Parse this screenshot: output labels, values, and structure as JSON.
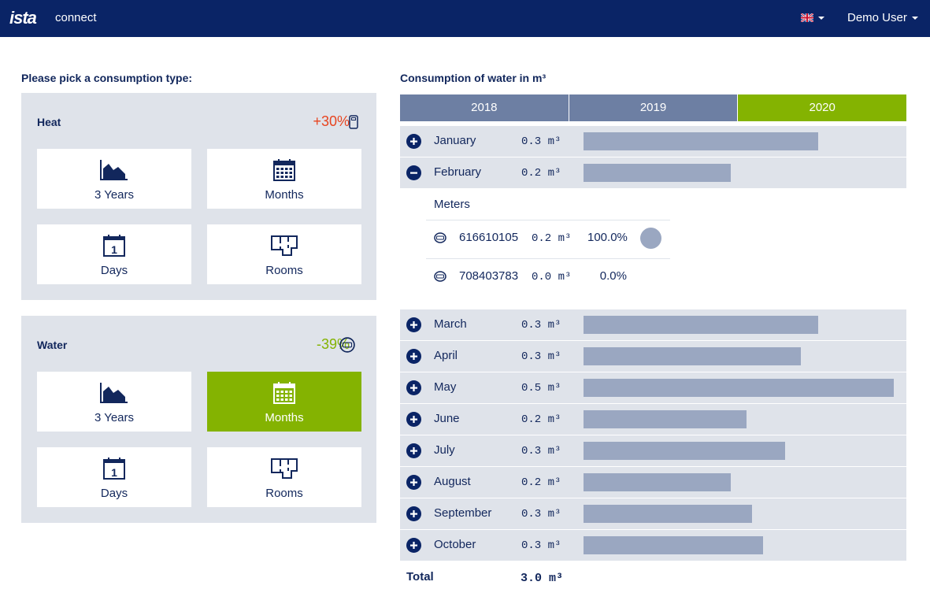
{
  "header": {
    "logo": "ista",
    "app_name": "connect",
    "language_flag": "uk-flag-icon",
    "user_name": "Demo User"
  },
  "picker": {
    "title": "Please pick a consumption type:",
    "heat": {
      "label": "Heat",
      "change": "+30%",
      "change_color": "#e8441f",
      "icon": "heat-meter-icon",
      "tiles": [
        {
          "label": "3 Years",
          "icon": "area-chart-icon",
          "active": false
        },
        {
          "label": "Months",
          "icon": "calendar-icon",
          "active": false
        },
        {
          "label": "Days",
          "icon": "day-calendar-icon",
          "active": false
        },
        {
          "label": "Rooms",
          "icon": "floorplan-icon",
          "active": false
        }
      ]
    },
    "water": {
      "label": "Water",
      "change": "-39%",
      "change_color": "#84b301",
      "icon": "water-meter-icon",
      "tiles": [
        {
          "label": "3 Years",
          "icon": "area-chart-icon",
          "active": false
        },
        {
          "label": "Months",
          "icon": "calendar-icon",
          "active": true
        },
        {
          "label": "Days",
          "icon": "day-calendar-icon",
          "active": false
        },
        {
          "label": "Rooms",
          "icon": "floorplan-icon",
          "active": false
        }
      ]
    }
  },
  "consumption": {
    "title": "Consumption of water in m³",
    "years": [
      {
        "label": "2018",
        "active": false
      },
      {
        "label": "2019",
        "active": false
      },
      {
        "label": "2020",
        "active": true
      }
    ],
    "months": [
      {
        "name": "January",
        "value": "0.3 m³",
        "amount": 0.3,
        "expanded": false
      },
      {
        "name": "February",
        "value": "0.2 m³",
        "amount": 0.2,
        "expanded": true
      },
      {
        "name": "March",
        "value": "0.3 m³",
        "amount": 0.3,
        "expanded": false
      },
      {
        "name": "April",
        "value": "0.3 m³",
        "amount": 0.3,
        "expanded": false
      },
      {
        "name": "May",
        "value": "0.5 m³",
        "amount": 0.5,
        "expanded": false
      },
      {
        "name": "June",
        "value": "0.2 m³",
        "amount": 0.2,
        "expanded": false
      },
      {
        "name": "July",
        "value": "0.3 m³",
        "amount": 0.3,
        "expanded": false
      },
      {
        "name": "August",
        "value": "0.2 m³",
        "amount": 0.2,
        "expanded": false
      },
      {
        "name": "September",
        "value": "0.3 m³",
        "amount": 0.3,
        "expanded": false
      },
      {
        "name": "October",
        "value": "0.3 m³",
        "amount": 0.3,
        "expanded": false
      }
    ],
    "meters_label": "Meters",
    "meters": [
      {
        "id": "616610105",
        "value": "0.2 m³",
        "share": "100.0%",
        "has_dot": true
      },
      {
        "id": "708403783",
        "value": "0.0 m³",
        "share": "0.0%",
        "has_dot": false
      }
    ],
    "total_label": "Total",
    "total_value": "3.0 m³"
  },
  "colors": {
    "navy": "#0a2466",
    "accent_green": "#84b301",
    "bar": "#9aa7c1",
    "panel_bg": "#dfe3ea"
  }
}
